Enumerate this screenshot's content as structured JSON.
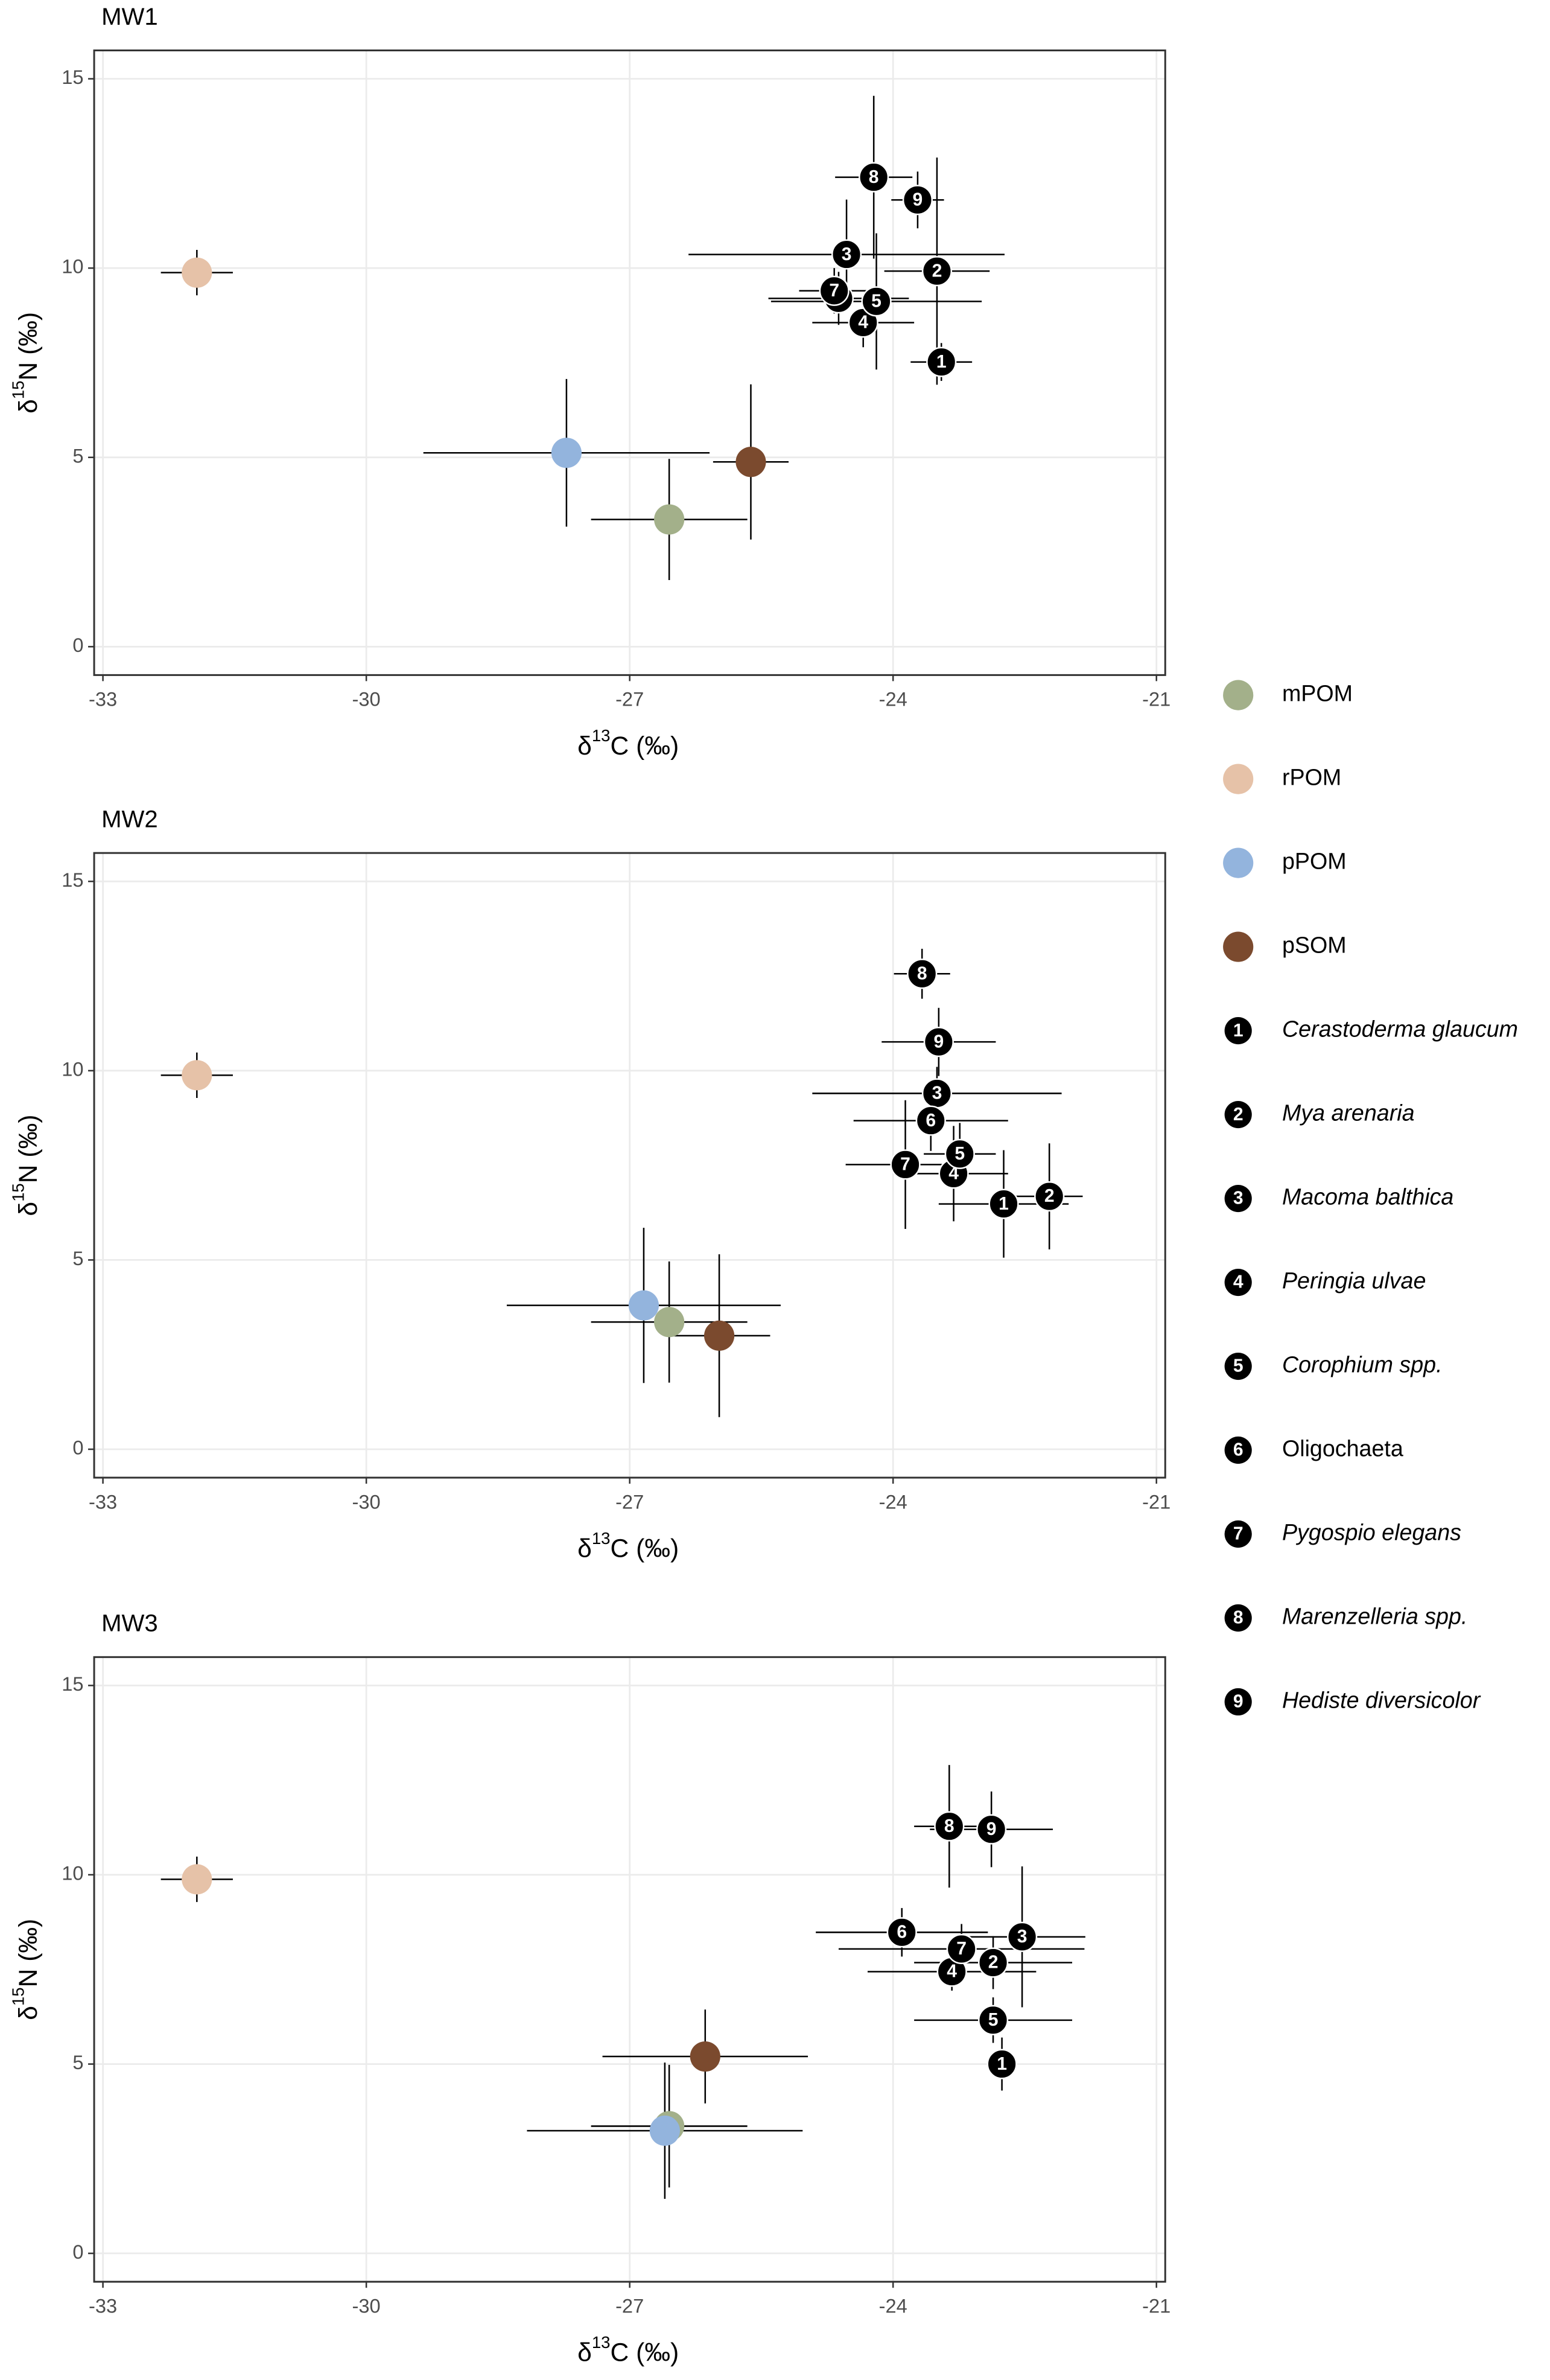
{
  "chart_data": [
    {
      "type": "scatter",
      "title": "MW1",
      "xlabel": [
        "δ",
        "13",
        "C (‰)"
      ],
      "ylabel": [
        "δ",
        "15",
        "N (‰)"
      ],
      "xlim": [
        -33.1,
        -20.9
      ],
      "ylim": [
        -0.75,
        15.75
      ],
      "xticks": [
        -33,
        -30,
        -27,
        -24,
        -21
      ],
      "yticks": [
        0,
        5,
        10,
        15
      ],
      "grid": true,
      "series": [
        {
          "name": "mPOM",
          "color": "#a3b08a",
          "x": [
            -26.55
          ],
          "y": [
            3.36
          ],
          "xerr": [
            0.89
          ],
          "yerr": [
            1.6
          ]
        },
        {
          "name": "rPOM",
          "color": "#e6c2a8",
          "x": [
            -31.93
          ],
          "y": [
            9.88
          ],
          "xerr": [
            0.41
          ],
          "yerr": [
            0.6
          ]
        },
        {
          "name": "pPOM",
          "color": "#93b4dd",
          "x": [
            -27.72
          ],
          "y": [
            5.12
          ],
          "xerr": [
            1.63
          ],
          "yerr": [
            1.95
          ]
        },
        {
          "name": "pSOM",
          "color": "#7b4a2e",
          "x": [
            -25.62
          ],
          "y": [
            4.88
          ],
          "xerr": [
            0.43
          ],
          "yerr": [
            2.05
          ]
        },
        {
          "name": "Cerastoderma glaucum",
          "label": "1",
          "italic": true,
          "color": "#000000",
          "x": [
            -23.45
          ],
          "y": [
            7.52
          ],
          "xerr": [
            0.35
          ],
          "yerr": [
            0.5
          ]
        },
        {
          "name": "Mya arenaria",
          "label": "2",
          "italic": true,
          "color": "#000000",
          "x": [
            -23.5
          ],
          "y": [
            9.92
          ],
          "xerr": [
            0.6
          ],
          "yerr": [
            3.0
          ]
        },
        {
          "name": "Macoma balthica",
          "label": "3",
          "italic": true,
          "color": "#000000",
          "x": [
            -24.53
          ],
          "y": [
            10.36
          ],
          "xerr": [
            1.8
          ],
          "yerr": [
            1.45
          ]
        },
        {
          "name": "Peringia ulvae",
          "label": "4",
          "italic": true,
          "color": "#000000",
          "x": [
            -24.34
          ],
          "y": [
            8.56
          ],
          "xerr": [
            0.58
          ],
          "yerr": [
            0.65
          ]
        },
        {
          "name": "Corophium spp.",
          "label": "5",
          "italic": true,
          "color": "#000000",
          "x": [
            -24.19
          ],
          "y": [
            9.12
          ],
          "xerr": [
            1.2
          ],
          "yerr": [
            1.8
          ]
        },
        {
          "name": "Oligochaeta",
          "label": "6",
          "italic": false,
          "color": "#000000",
          "x": [
            -24.62
          ],
          "y": [
            9.2
          ],
          "xerr": [
            0.8
          ],
          "yerr": [
            0.7
          ]
        },
        {
          "name": "Pygospio elegans",
          "label": "7",
          "italic": true,
          "color": "#000000",
          "x": [
            -24.67
          ],
          "y": [
            9.4
          ],
          "xerr": [
            0.4
          ],
          "yerr": [
            0.6
          ]
        },
        {
          "name": "Marenzelleria spp.",
          "label": "8",
          "italic": true,
          "color": "#000000",
          "x": [
            -24.22
          ],
          "y": [
            12.4
          ],
          "xerr": [
            0.44
          ],
          "yerr": [
            2.15
          ]
        },
        {
          "name": "Hediste diversicolor",
          "label": "9",
          "italic": true,
          "color": "#000000",
          "x": [
            -23.72
          ],
          "y": [
            11.8
          ],
          "xerr": [
            0.3
          ],
          "yerr": [
            0.75
          ]
        }
      ]
    },
    {
      "type": "scatter",
      "title": "MW2",
      "xlabel": [
        "δ",
        "13",
        "C (‰)"
      ],
      "ylabel": [
        "δ",
        "15",
        "N (‰)"
      ],
      "xlim": [
        -33.1,
        -20.9
      ],
      "ylim": [
        -0.75,
        15.75
      ],
      "xticks": [
        -33,
        -30,
        -27,
        -24,
        -21
      ],
      "yticks": [
        0,
        5,
        10,
        15
      ],
      "grid": true,
      "series": [
        {
          "name": "mPOM",
          "color": "#a3b08a",
          "x": [
            -26.55
          ],
          "y": [
            3.36
          ],
          "xerr": [
            0.89
          ],
          "yerr": [
            1.6
          ]
        },
        {
          "name": "rPOM",
          "color": "#e6c2a8",
          "x": [
            -31.93
          ],
          "y": [
            9.88
          ],
          "xerr": [
            0.41
          ],
          "yerr": [
            0.6
          ]
        },
        {
          "name": "pPOM",
          "color": "#93b4dd",
          "x": [
            -26.84
          ],
          "y": [
            3.8
          ],
          "xerr": [
            1.56
          ],
          "yerr": [
            2.05
          ]
        },
        {
          "name": "pSOM",
          "color": "#7b4a2e",
          "x": [
            -25.98
          ],
          "y": [
            3.0
          ],
          "xerr": [
            0.58
          ],
          "yerr": [
            2.15
          ]
        },
        {
          "name": "Cerastoderma glaucum",
          "label": "1",
          "italic": true,
          "color": "#000000",
          "x": [
            -22.74
          ],
          "y": [
            6.48
          ],
          "xerr": [
            0.74
          ],
          "yerr": [
            1.42
          ]
        },
        {
          "name": "Mya arenaria",
          "label": "2",
          "italic": true,
          "color": "#000000",
          "x": [
            -22.22
          ],
          "y": [
            6.68
          ],
          "xerr": [
            0.38
          ],
          "yerr": [
            1.4
          ]
        },
        {
          "name": "Macoma balthica",
          "label": "3",
          "italic": true,
          "color": "#000000",
          "x": [
            -23.5
          ],
          "y": [
            9.4
          ],
          "xerr": [
            1.42
          ],
          "yerr": [
            0.7
          ]
        },
        {
          "name": "Peringia ulvae",
          "label": "4",
          "italic": true,
          "color": "#000000",
          "x": [
            -23.31
          ],
          "y": [
            7.28
          ],
          "xerr": [
            0.62
          ],
          "yerr": [
            1.26
          ]
        },
        {
          "name": "Corophium spp.",
          "label": "5",
          "italic": true,
          "color": "#000000",
          "x": [
            -23.24
          ],
          "y": [
            7.8
          ],
          "xerr": [
            0.41
          ],
          "yerr": [
            0.82
          ]
        },
        {
          "name": "Oligochaeta",
          "label": "6",
          "italic": false,
          "color": "#000000",
          "x": [
            -23.57
          ],
          "y": [
            8.68
          ],
          "xerr": [
            0.88
          ],
          "yerr": [
            0.8
          ]
        },
        {
          "name": "Pygospio elegans",
          "label": "7",
          "italic": true,
          "color": "#000000",
          "x": [
            -23.86
          ],
          "y": [
            7.52
          ],
          "xerr": [
            0.68
          ],
          "yerr": [
            1.7
          ]
        },
        {
          "name": "Marenzelleria spp.",
          "label": "8",
          "italic": true,
          "color": "#000000",
          "x": [
            -23.67
          ],
          "y": [
            12.56
          ],
          "xerr": [
            0.32
          ],
          "yerr": [
            0.66
          ]
        },
        {
          "name": "Hediste diversicolor",
          "label": "9",
          "italic": true,
          "color": "#000000",
          "x": [
            -23.48
          ],
          "y": [
            10.76
          ],
          "xerr": [
            0.65
          ],
          "yerr": [
            0.9
          ]
        }
      ]
    },
    {
      "type": "scatter",
      "title": "MW3",
      "xlabel": [
        "δ",
        "13",
        "C (‰)"
      ],
      "ylabel": [
        "δ",
        "15",
        "N (‰)"
      ],
      "xlim": [
        -33.1,
        -20.9
      ],
      "ylim": [
        -0.75,
        15.75
      ],
      "xticks": [
        -33,
        -30,
        -27,
        -24,
        -21
      ],
      "yticks": [
        0,
        5,
        10,
        15
      ],
      "grid": true,
      "series": [
        {
          "name": "mPOM",
          "color": "#a3b08a",
          "x": [
            -26.55
          ],
          "y": [
            3.36
          ],
          "xerr": [
            0.89
          ],
          "yerr": [
            1.62
          ]
        },
        {
          "name": "rPOM",
          "color": "#e6c2a8",
          "x": [
            -31.93
          ],
          "y": [
            9.88
          ],
          "xerr": [
            0.41
          ],
          "yerr": [
            0.6
          ]
        },
        {
          "name": "pPOM",
          "color": "#93b4dd",
          "x": [
            -26.6
          ],
          "y": [
            3.24
          ],
          "xerr": [
            1.57
          ],
          "yerr": [
            1.8
          ]
        },
        {
          "name": "pSOM",
          "color": "#7b4a2e",
          "x": [
            -26.14
          ],
          "y": [
            5.2
          ],
          "xerr": [
            1.17
          ],
          "yerr": [
            1.24
          ]
        },
        {
          "name": "Cerastoderma glaucum",
          "label": "1",
          "italic": true,
          "color": "#000000",
          "x": [
            -22.76
          ],
          "y": [
            5.0
          ],
          "xerr": [
            0.1
          ],
          "yerr": [
            0.7
          ]
        },
        {
          "name": "Mya arenaria",
          "label": "2",
          "italic": true,
          "color": "#000000",
          "x": [
            -22.86
          ],
          "y": [
            7.68
          ],
          "xerr": [
            0.9
          ],
          "yerr": [
            0.7
          ]
        },
        {
          "name": "Macoma balthica",
          "label": "3",
          "italic": true,
          "color": "#000000",
          "x": [
            -22.53
          ],
          "y": [
            8.36
          ],
          "xerr": [
            0.72
          ],
          "yerr": [
            1.86
          ]
        },
        {
          "name": "Peringia ulvae",
          "label": "4",
          "italic": true,
          "color": "#000000",
          "x": [
            -23.33
          ],
          "y": [
            7.44
          ],
          "xerr": [
            0.96
          ],
          "yerr": [
            0.5
          ]
        },
        {
          "name": "Corophium spp.",
          "label": "5",
          "italic": true,
          "color": "#000000",
          "x": [
            -22.86
          ],
          "y": [
            6.16
          ],
          "xerr": [
            0.9
          ],
          "yerr": [
            0.6
          ]
        },
        {
          "name": "Oligochaeta",
          "label": "6",
          "italic": false,
          "color": "#000000",
          "x": [
            -23.9
          ],
          "y": [
            8.48
          ],
          "xerr": [
            0.98
          ],
          "yerr": [
            0.64
          ]
        },
        {
          "name": "Pygospio elegans",
          "label": "7",
          "italic": true,
          "color": "#000000",
          "x": [
            -23.22
          ],
          "y": [
            8.04
          ],
          "xerr": [
            1.4
          ],
          "yerr": [
            0.66
          ]
        },
        {
          "name": "Marenzelleria spp.",
          "label": "8",
          "italic": true,
          "color": "#000000",
          "x": [
            -23.36
          ],
          "y": [
            11.28
          ],
          "xerr": [
            0.4
          ],
          "yerr": [
            1.62
          ]
        },
        {
          "name": "Hediste diversicolor",
          "label": "9",
          "italic": true,
          "color": "#000000",
          "x": [
            -22.88
          ],
          "y": [
            11.2
          ],
          "xerr": [
            0.7
          ],
          "yerr": [
            1.0
          ]
        }
      ]
    }
  ]
}
